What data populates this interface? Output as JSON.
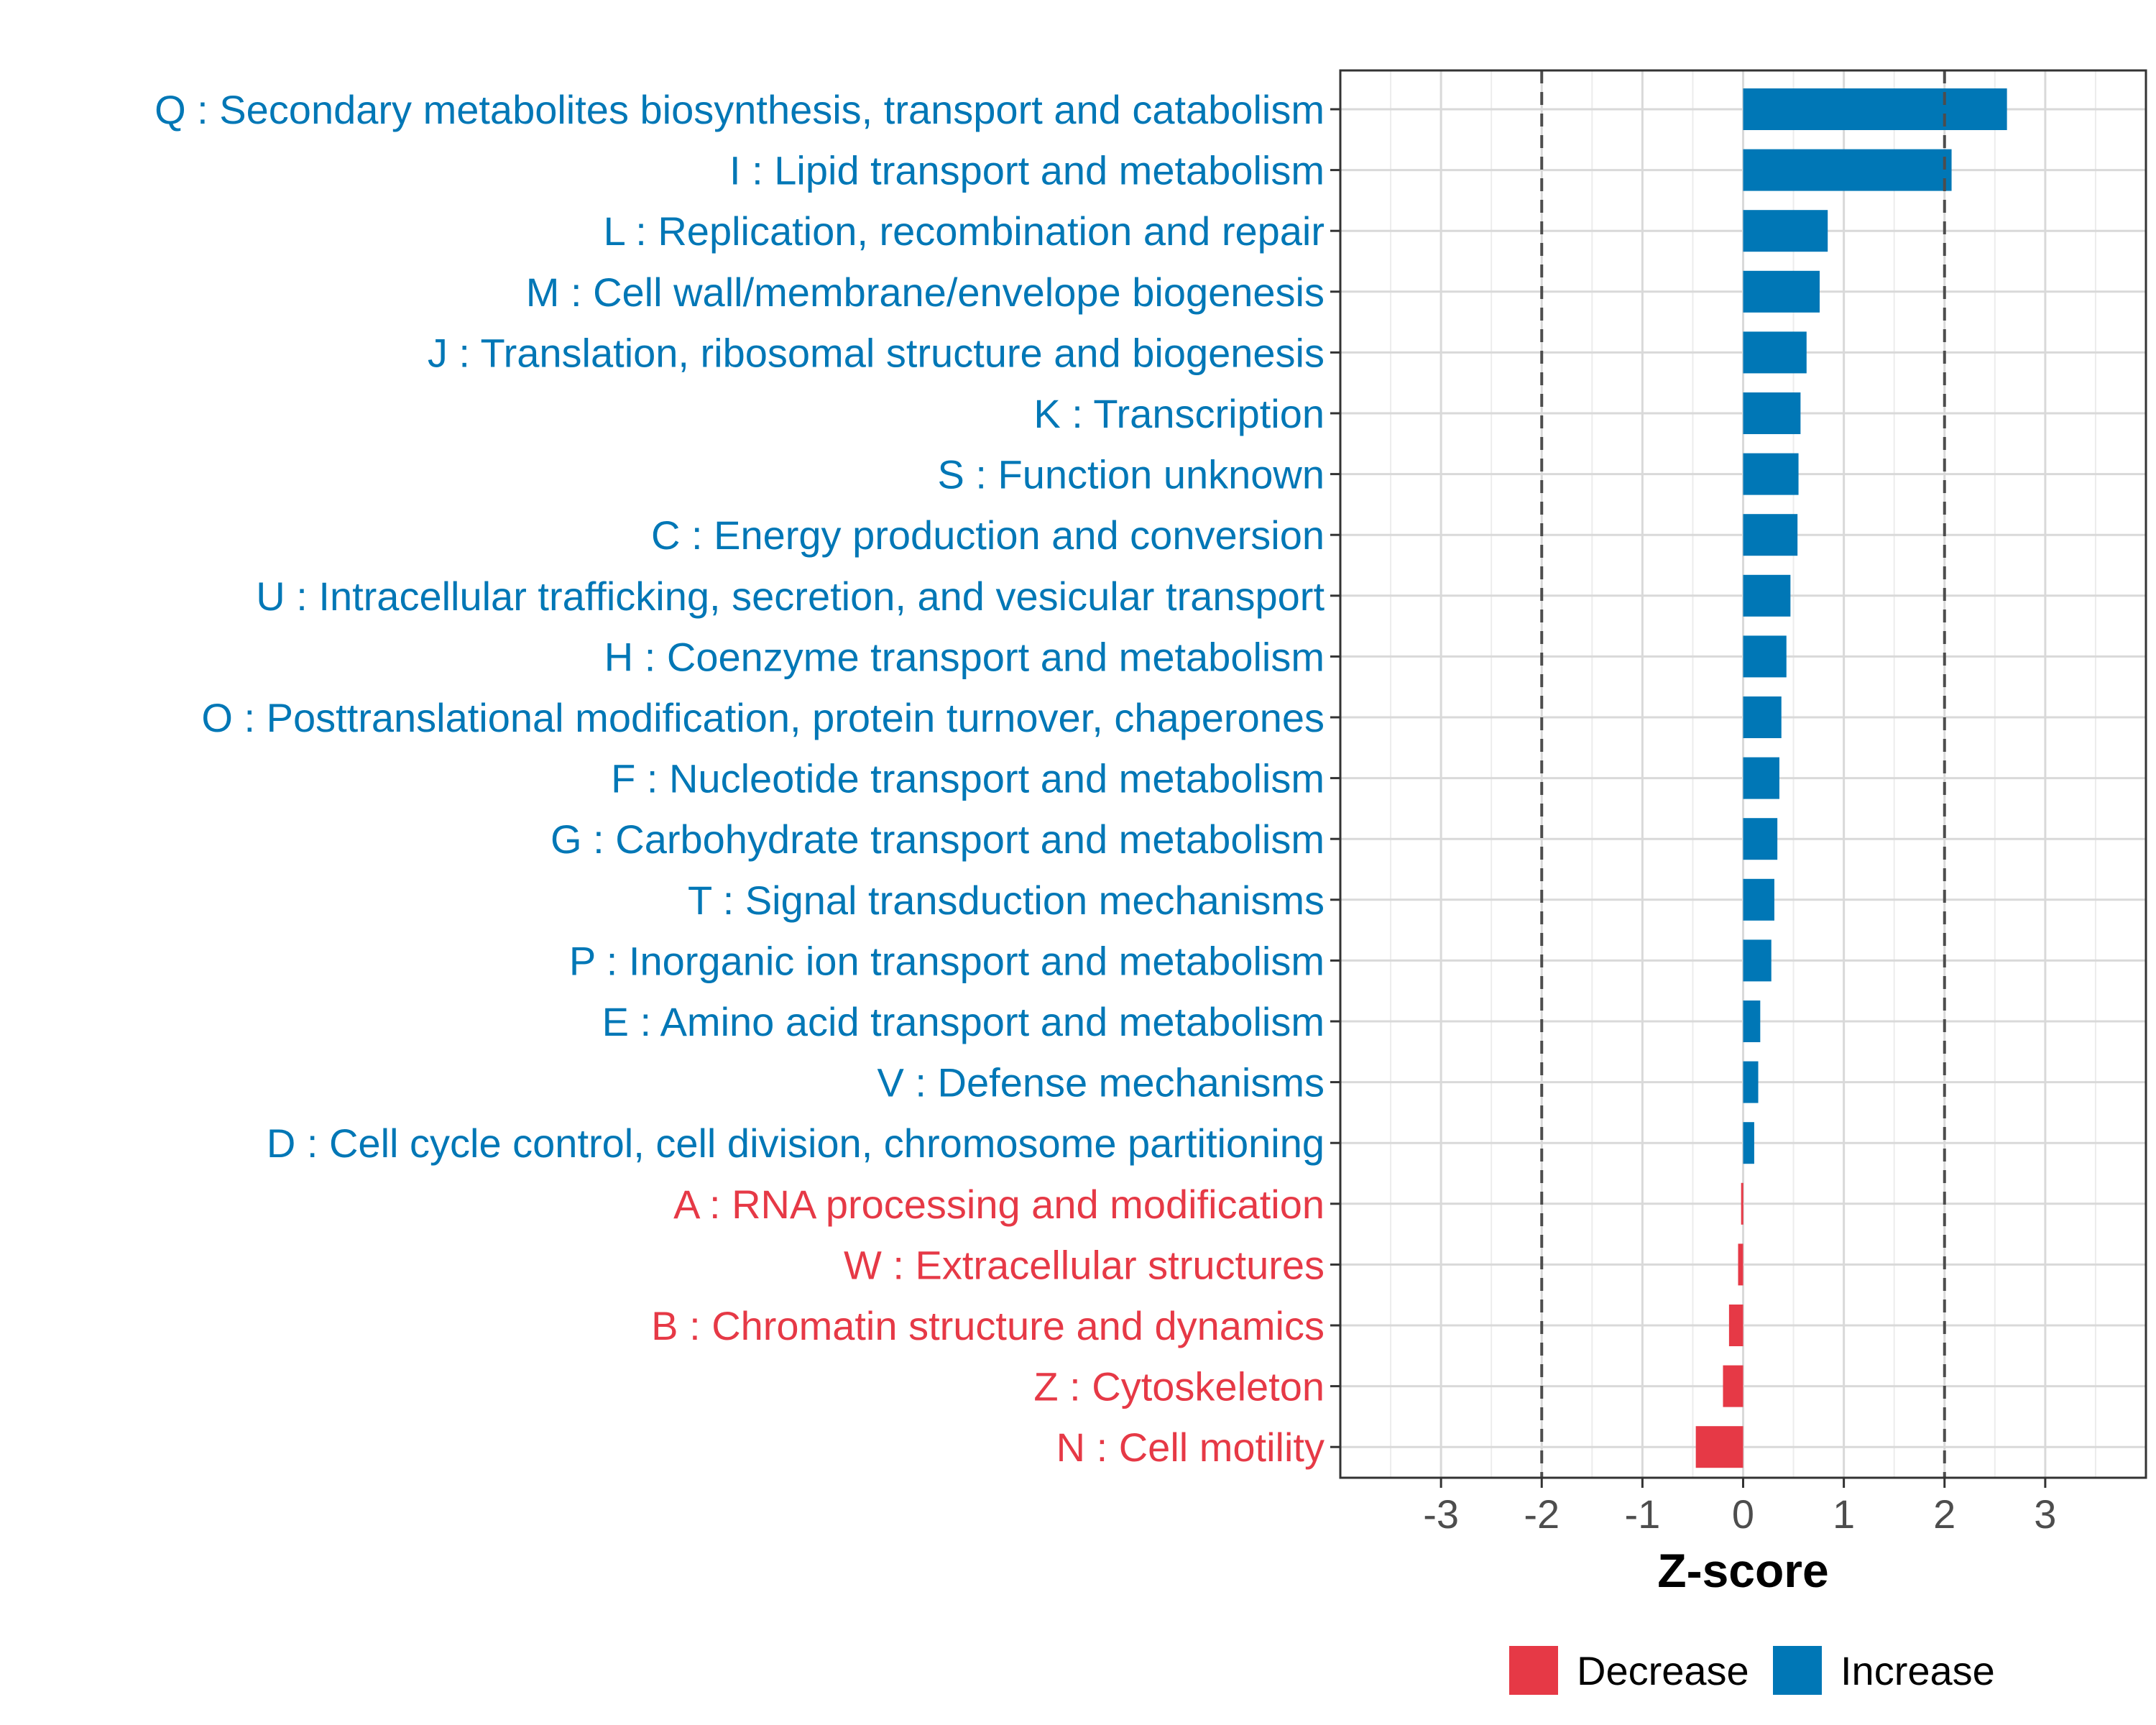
{
  "chart_data": {
    "type": "bar",
    "orientation": "horizontal",
    "xlabel": "Z-score",
    "xlim": [
      -4,
      4
    ],
    "xticks": [
      -3,
      -2,
      -1,
      0,
      1,
      2,
      3
    ],
    "xtick_labels": [
      "-3",
      "-2",
      "-1",
      "0",
      "1",
      "2",
      "3"
    ],
    "reference_lines": [
      -2,
      2
    ],
    "grid": true,
    "colors": {
      "Decrease": "#E63946",
      "Increase": "#0077B6"
    },
    "categories": [
      "Q : Secondary metabolites biosynthesis, transport and catabolism",
      "I : Lipid transport and metabolism",
      "L : Replication, recombination and repair",
      "M : Cell wall/membrane/envelope biogenesis",
      "J : Translation, ribosomal structure and biogenesis",
      "K : Transcription",
      "S : Function unknown",
      "C : Energy production and conversion",
      "U : Intracellular trafficking, secretion, and vesicular transport",
      "H : Coenzyme transport and metabolism",
      "O : Posttranslational modification, protein turnover, chaperones",
      "F : Nucleotide transport and metabolism",
      "G : Carbohydrate transport and metabolism",
      "T : Signal transduction mechanisms",
      "P : Inorganic ion transport and metabolism",
      "E : Amino acid transport and metabolism",
      "V : Defense mechanisms",
      "D : Cell cycle control, cell division, chromosome partitioning",
      "A : RNA processing and modification",
      "W : Extracellular structures",
      "B : Chromatin structure and dynamics",
      "Z : Cytoskeleton",
      "N : Cell motility"
    ],
    "values": [
      2.62,
      2.07,
      0.84,
      0.76,
      0.63,
      0.57,
      0.55,
      0.54,
      0.47,
      0.43,
      0.38,
      0.36,
      0.34,
      0.31,
      0.28,
      0.17,
      0.15,
      0.11,
      -0.02,
      -0.05,
      -0.14,
      -0.2,
      -0.47
    ],
    "groups": [
      "Increase",
      "Increase",
      "Increase",
      "Increase",
      "Increase",
      "Increase",
      "Increase",
      "Increase",
      "Increase",
      "Increase",
      "Increase",
      "Increase",
      "Increase",
      "Increase",
      "Increase",
      "Increase",
      "Increase",
      "Increase",
      "Decrease",
      "Decrease",
      "Decrease",
      "Decrease",
      "Decrease"
    ],
    "legend": {
      "position": "bottom",
      "entries": [
        "Decrease",
        "Increase"
      ]
    }
  }
}
